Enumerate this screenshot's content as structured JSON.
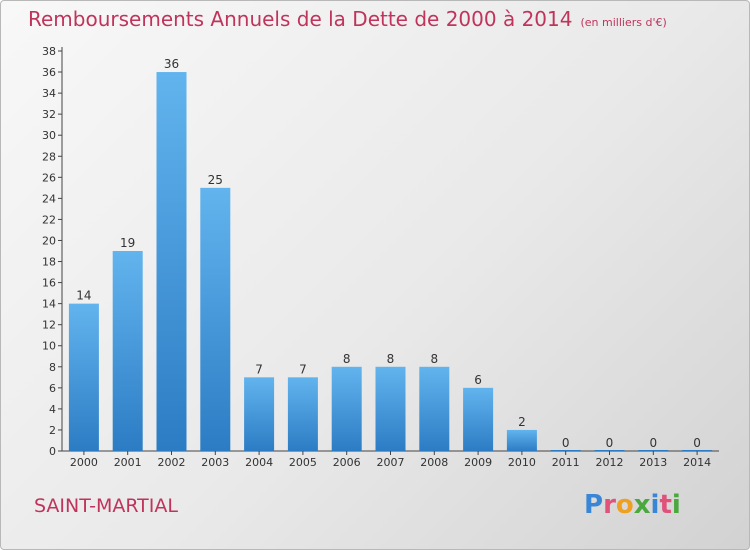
{
  "title": "Remboursements Annuels de la Dette de 2000 à 2014",
  "unit_note": "(en milliers d'€)",
  "commune": "SAINT-MARTIAL",
  "logo": {
    "text": "Proxiti",
    "letter_colors": [
      "#3a86d6",
      "#e0527a",
      "#f0a020",
      "#4aa83c",
      "#3a86d6",
      "#e0527a",
      "#4aa83c"
    ]
  },
  "colors": {
    "title": "#c0345c",
    "bar_top": "#62b4ee",
    "bar_bottom": "#2c7cc4",
    "axis": "#444444",
    "gridline_tick": "#444444"
  },
  "chart_data": {
    "type": "bar",
    "title": "Remboursements Annuels de la Dette de 2000 à 2014",
    "categories": [
      "2000",
      "2001",
      "2002",
      "2003",
      "2004",
      "2005",
      "2006",
      "2007",
      "2008",
      "2009",
      "2010",
      "2011",
      "2012",
      "2013",
      "2014"
    ],
    "values": [
      14,
      19,
      36,
      25,
      7,
      7,
      8,
      8,
      8,
      6,
      2,
      0,
      0,
      0,
      0
    ],
    "ylim": [
      0,
      38
    ],
    "yticks": [
      0,
      2,
      4,
      6,
      8,
      10,
      12,
      14,
      16,
      18,
      20,
      22,
      24,
      26,
      28,
      30,
      32,
      34,
      36,
      38
    ],
    "grid": false,
    "xlabel": "",
    "ylabel": ""
  }
}
